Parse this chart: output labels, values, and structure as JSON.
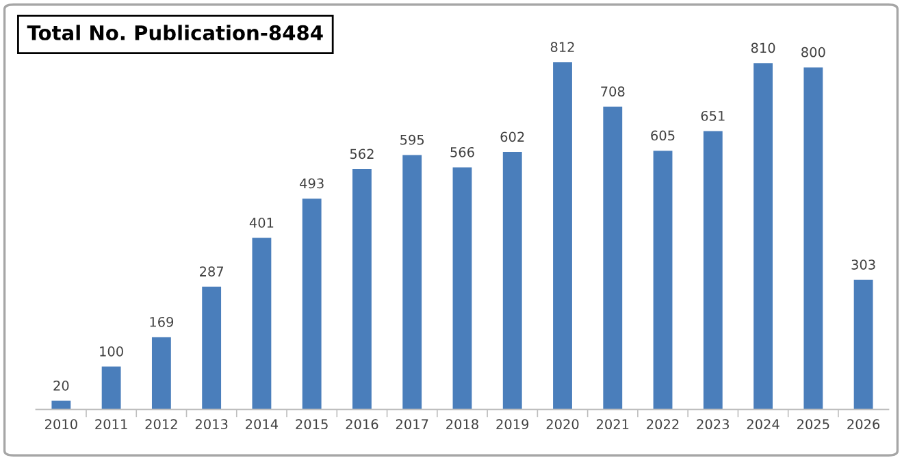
{
  "chart_data": {
    "type": "bar",
    "title": "Total No. Publication-8484",
    "categories": [
      "2010",
      "2011",
      "2012",
      "2013",
      "2014",
      "2015",
      "2016",
      "2017",
      "2018",
      "2019",
      "2020",
      "2021",
      "2022",
      "2023",
      "2024",
      "2025",
      "2026"
    ],
    "values": [
      20,
      100,
      169,
      287,
      401,
      493,
      562,
      595,
      566,
      602,
      812,
      708,
      605,
      651,
      810,
      800,
      303
    ],
    "color": "#4a7ebb",
    "data_labels": true,
    "grid": false,
    "legend": false
  }
}
